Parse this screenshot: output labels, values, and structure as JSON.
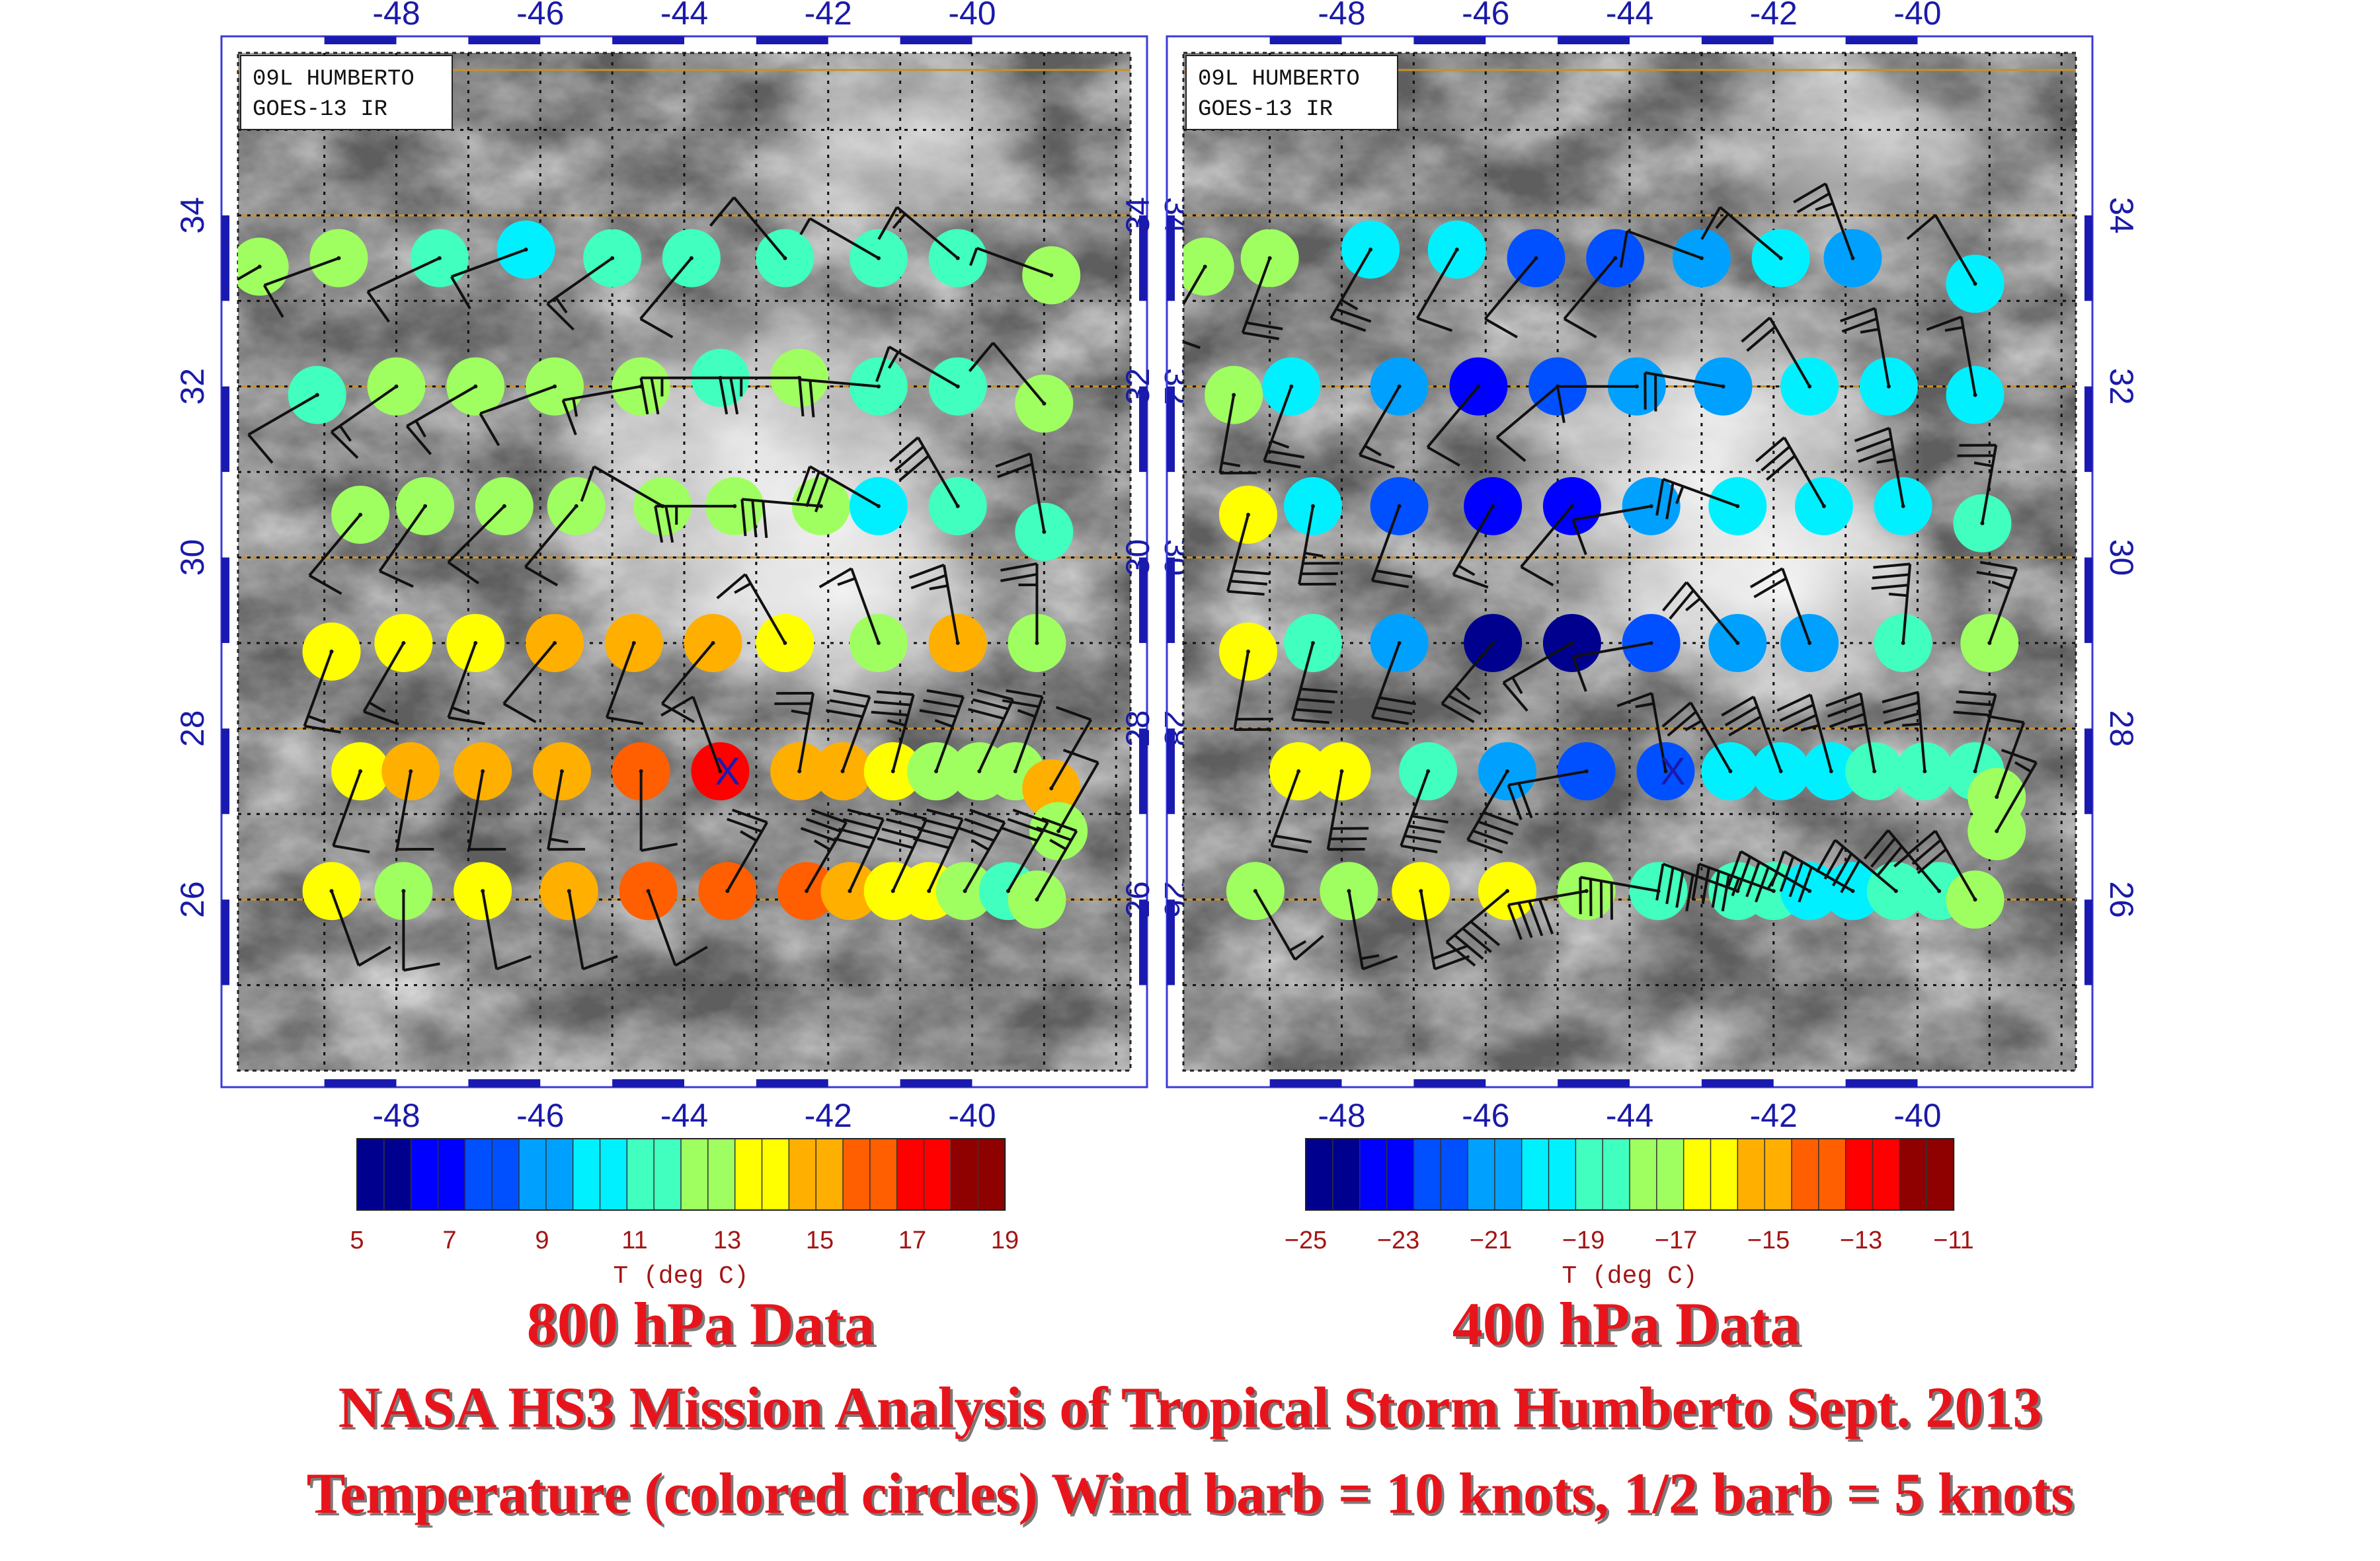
{
  "panels": [
    {
      "id": "left",
      "header": [
        "09L HUMBERTO",
        "GOES-13 IR"
      ],
      "pressure_label": "800 hPa Data",
      "colorbar": {
        "ticks": [
          "5",
          "7",
          "9",
          "11",
          "13",
          "15",
          "17",
          "19"
        ],
        "min": 5,
        "max": 19,
        "label": "T (deg C)"
      }
    },
    {
      "id": "right",
      "header": [
        "09L HUMBERTO",
        "GOES-13 IR"
      ],
      "pressure_label": "400 hPa Data",
      "colorbar": {
        "ticks": [
          "−25",
          "−23",
          "−21",
          "−19",
          "−17",
          "−15",
          "−13",
          "−11"
        ],
        "min": -25,
        "max": -11,
        "label": "T (deg C)"
      }
    }
  ],
  "map": {
    "lon_ticks": [
      "-48",
      "-46",
      "-44",
      "-42",
      "-40"
    ],
    "lat_ticks": [
      "34",
      "32",
      "30",
      "28",
      "26"
    ],
    "lon_range": [
      -50.2,
      -37.8
    ],
    "lat_range": [
      24,
      35.9
    ]
  },
  "captions": {
    "line1": "NASA HS3 Mission Analysis of Tropical Storm Humberto  Sept. 2013",
    "line2": "Temperature (colored circles) Wind barb = 10 knots, 1/2 barb = 5 knots"
  },
  "colormap": [
    "#00008f",
    "#0000ff",
    "#0050ff",
    "#00a0ff",
    "#00f0ff",
    "#40ffbf",
    "#9fff60",
    "#ffff00",
    "#ffaf00",
    "#ff5f00",
    "#ff0000",
    "#8f0000"
  ],
  "chart_data": [
    {
      "type": "scatter",
      "name": "800 hPa",
      "center_marker": {
        "lon": -43.4,
        "lat": 27.5,
        "symbol": "X"
      },
      "points": [
        {
          "lon": -49.9,
          "lat": 33.4,
          "t": 12.6,
          "spd": 15,
          "dir": 240
        },
        {
          "lon": -48.8,
          "lat": 33.5,
          "t": 12.0,
          "spd": 10,
          "dir": 250
        },
        {
          "lon": -47.4,
          "lat": 33.5,
          "t": 11.8,
          "spd": 10,
          "dir": 245
        },
        {
          "lon": -46.2,
          "lat": 33.6,
          "t": 10.6,
          "spd": 10,
          "dir": 250
        },
        {
          "lon": -45.0,
          "lat": 33.5,
          "t": 11.2,
          "spd": 15,
          "dir": 235
        },
        {
          "lon": -43.9,
          "lat": 33.5,
          "t": 11.0,
          "spd": 10,
          "dir": 220
        },
        {
          "lon": -42.6,
          "lat": 33.5,
          "t": 11.1,
          "spd": 10,
          "dir": 320
        },
        {
          "lon": -41.3,
          "lat": 33.5,
          "t": 10.9,
          "spd": 5,
          "dir": 300
        },
        {
          "lon": -40.2,
          "lat": 33.5,
          "t": 11.0,
          "spd": 15,
          "dir": 310
        },
        {
          "lon": -38.9,
          "lat": 33.3,
          "t": 12.6,
          "spd": 5,
          "dir": 290
        },
        {
          "lon": -49.1,
          "lat": 31.9,
          "t": 11.2,
          "spd": 10,
          "dir": 240
        },
        {
          "lon": -48.0,
          "lat": 32.0,
          "t": 12.1,
          "spd": 15,
          "dir": 235
        },
        {
          "lon": -46.9,
          "lat": 32.0,
          "t": 12.0,
          "spd": 15,
          "dir": 240
        },
        {
          "lon": -45.8,
          "lat": 32.0,
          "t": 12.1,
          "spd": 10,
          "dir": 250
        },
        {
          "lon": -44.6,
          "lat": 32.0,
          "t": 12.2,
          "spd": 15,
          "dir": 260
        },
        {
          "lon": -43.5,
          "lat": 32.1,
          "t": 11.8,
          "spd": 25,
          "dir": 270
        },
        {
          "lon": -42.4,
          "lat": 32.1,
          "t": 12.0,
          "spd": 25,
          "dir": 270
        },
        {
          "lon": -41.3,
          "lat": 32.0,
          "t": 11.0,
          "spd": 20,
          "dir": 275
        },
        {
          "lon": -40.2,
          "lat": 32.0,
          "t": 11.1,
          "spd": 15,
          "dir": 300
        },
        {
          "lon": -39.0,
          "lat": 31.8,
          "t": 12.0,
          "spd": 10,
          "dir": 320
        },
        {
          "lon": -48.5,
          "lat": 30.5,
          "t": 12.3,
          "spd": 10,
          "dir": 220
        },
        {
          "lon": -47.6,
          "lat": 30.6,
          "t": 12.2,
          "spd": 10,
          "dir": 215
        },
        {
          "lon": -46.5,
          "lat": 30.6,
          "t": 12.0,
          "spd": 10,
          "dir": 225
        },
        {
          "lon": -45.5,
          "lat": 30.6,
          "t": 12.3,
          "spd": 10,
          "dir": 220
        },
        {
          "lon": -44.3,
          "lat": 30.6,
          "t": 12.5,
          "spd": 10,
          "dir": 300
        },
        {
          "lon": -43.3,
          "lat": 30.6,
          "t": 12.2,
          "spd": 25,
          "dir": 270
        },
        {
          "lon": -42.1,
          "lat": 30.6,
          "t": 12.0,
          "spd": 30,
          "dir": 275
        },
        {
          "lon": -41.3,
          "lat": 30.6,
          "t": 10.8,
          "spd": 30,
          "dir": 300
        },
        {
          "lon": -40.2,
          "lat": 30.6,
          "t": 11.0,
          "spd": 30,
          "dir": 330
        },
        {
          "lon": -39.0,
          "lat": 30.3,
          "t": 11.6,
          "spd": 20,
          "dir": 350
        },
        {
          "lon": -48.9,
          "lat": 28.9,
          "t": 13.6,
          "spd": 15,
          "dir": 200
        },
        {
          "lon": -47.9,
          "lat": 29.0,
          "t": 13.3,
          "spd": 15,
          "dir": 210
        },
        {
          "lon": -46.9,
          "lat": 29.0,
          "t": 13.8,
          "spd": 15,
          "dir": 200
        },
        {
          "lon": -45.8,
          "lat": 29.0,
          "t": 14.7,
          "spd": 10,
          "dir": 220
        },
        {
          "lon": -44.7,
          "lat": 29.0,
          "t": 15.2,
          "spd": 10,
          "dir": 200
        },
        {
          "lon": -43.6,
          "lat": 29.0,
          "t": 15.3,
          "spd": 10,
          "dir": 220
        },
        {
          "lon": -42.6,
          "lat": 29.0,
          "t": 14.2,
          "spd": 15,
          "dir": 330
        },
        {
          "lon": -41.3,
          "lat": 29.0,
          "t": 12.5,
          "spd": 15,
          "dir": 340
        },
        {
          "lon": -40.2,
          "lat": 29.0,
          "t": 14.6,
          "spd": 25,
          "dir": 350
        },
        {
          "lon": -39.1,
          "lat": 29.0,
          "t": 12.4,
          "spd": 25,
          "dir": 360
        },
        {
          "lon": -48.5,
          "lat": 27.5,
          "t": 14.0,
          "spd": 10,
          "dir": 200
        },
        {
          "lon": -47.8,
          "lat": 27.5,
          "t": 14.4,
          "spd": 10,
          "dir": 190
        },
        {
          "lon": -46.8,
          "lat": 27.5,
          "t": 14.6,
          "spd": 10,
          "dir": 190
        },
        {
          "lon": -45.7,
          "lat": 27.5,
          "t": 14.8,
          "spd": 15,
          "dir": 190
        },
        {
          "lon": -44.6,
          "lat": 27.5,
          "t": 16.6,
          "spd": 10,
          "dir": 180
        },
        {
          "lon": -43.5,
          "lat": 27.5,
          "t": 17.6,
          "spd": 10,
          "dir": 340
        },
        {
          "lon": -42.4,
          "lat": 27.5,
          "t": 15.2,
          "spd": 25,
          "dir": 10
        },
        {
          "lon": -41.8,
          "lat": 27.5,
          "t": 14.7,
          "spd": 30,
          "dir": 20
        },
        {
          "lon": -41.1,
          "lat": 27.5,
          "t": 13.6,
          "spd": 35,
          "dir": 15
        },
        {
          "lon": -40.5,
          "lat": 27.5,
          "t": 13.0,
          "spd": 35,
          "dir": 20
        },
        {
          "lon": -39.9,
          "lat": 27.5,
          "t": 12.9,
          "spd": 30,
          "dir": 25
        },
        {
          "lon": -39.4,
          "lat": 27.5,
          "t": 12.8,
          "spd": 25,
          "dir": 20
        },
        {
          "lon": -38.9,
          "lat": 27.3,
          "t": 14.4,
          "spd": 10,
          "dir": 30
        },
        {
          "lon": -38.8,
          "lat": 26.8,
          "t": 12.7,
          "spd": 10,
          "dir": 30
        },
        {
          "lon": -48.9,
          "lat": 26.1,
          "t": 13.4,
          "spd": 10,
          "dir": 160
        },
        {
          "lon": -47.9,
          "lat": 26.1,
          "t": 13.0,
          "spd": 10,
          "dir": 180
        },
        {
          "lon": -46.8,
          "lat": 26.1,
          "t": 13.5,
          "spd": 10,
          "dir": 170
        },
        {
          "lon": -45.6,
          "lat": 26.1,
          "t": 14.5,
          "spd": 10,
          "dir": 170
        },
        {
          "lon": -44.5,
          "lat": 26.1,
          "t": 15.9,
          "spd": 10,
          "dir": 160
        },
        {
          "lon": -43.4,
          "lat": 26.1,
          "t": 16.5,
          "spd": 25,
          "dir": 30
        },
        {
          "lon": -42.3,
          "lat": 26.1,
          "t": 16.5,
          "spd": 35,
          "dir": 30
        },
        {
          "lon": -41.7,
          "lat": 26.1,
          "t": 14.7,
          "spd": 40,
          "dir": 25
        },
        {
          "lon": -41.1,
          "lat": 26.1,
          "t": 14.0,
          "spd": 40,
          "dir": 25
        },
        {
          "lon": -40.6,
          "lat": 26.1,
          "t": 13.2,
          "spd": 40,
          "dir": 25
        },
        {
          "lon": -40.1,
          "lat": 26.1,
          "t": 12.0,
          "spd": 35,
          "dir": 30
        },
        {
          "lon": -39.5,
          "lat": 26.1,
          "t": 11.7,
          "spd": 30,
          "dir": 30
        },
        {
          "lon": -39.1,
          "lat": 26.0,
          "t": 12.3,
          "spd": 25,
          "dir": 30
        }
      ]
    },
    {
      "type": "scatter",
      "name": "400 hPa",
      "center_marker": {
        "lon": -43.4,
        "lat": 27.5,
        "symbol": "X"
      },
      "points": [
        {
          "lon": -49.9,
          "lat": 33.4,
          "t": -17.8,
          "spd": 10,
          "dir": 210
        },
        {
          "lon": -49.0,
          "lat": 33.5,
          "t": -17.9,
          "spd": 20,
          "dir": 200
        },
        {
          "lon": -47.6,
          "lat": 33.6,
          "t": -20.2,
          "spd": 25,
          "dir": 210
        },
        {
          "lon": -46.4,
          "lat": 33.6,
          "t": -20.3,
          "spd": 10,
          "dir": 210
        },
        {
          "lon": -45.3,
          "lat": 33.5,
          "t": -22.3,
          "spd": 10,
          "dir": 220
        },
        {
          "lon": -44.2,
          "lat": 33.5,
          "t": -22.0,
          "spd": 10,
          "dir": 220
        },
        {
          "lon": -43.0,
          "lat": 33.5,
          "t": -20.6,
          "spd": 10,
          "dir": 290
        },
        {
          "lon": -41.9,
          "lat": 33.5,
          "t": -20.3,
          "spd": 15,
          "dir": 310
        },
        {
          "lon": -40.9,
          "lat": 33.5,
          "t": -20.5,
          "spd": 25,
          "dir": 340
        },
        {
          "lon": -39.2,
          "lat": 33.2,
          "t": -20.2,
          "spd": 10,
          "dir": 330
        },
        {
          "lon": -49.5,
          "lat": 31.9,
          "t": -17.6,
          "spd": 15,
          "dir": 190
        },
        {
          "lon": -48.7,
          "lat": 32.0,
          "t": -20.0,
          "spd": 25,
          "dir": 200
        },
        {
          "lon": -47.2,
          "lat": 32.0,
          "t": -21.4,
          "spd": 15,
          "dir": 210
        },
        {
          "lon": -46.1,
          "lat": 32.0,
          "t": -22.8,
          "spd": 10,
          "dir": 220
        },
        {
          "lon": -45.0,
          "lat": 32.0,
          "t": -22.0,
          "spd": 10,
          "dir": 230
        },
        {
          "lon": -43.9,
          "lat": 32.0,
          "t": -21.4,
          "spd": 10,
          "dir": 270
        },
        {
          "lon": -42.7,
          "lat": 32.0,
          "t": -20.6,
          "spd": 20,
          "dir": 280
        },
        {
          "lon": -41.5,
          "lat": 32.0,
          "t": -20.3,
          "spd": 20,
          "dir": 330
        },
        {
          "lon": -40.4,
          "lat": 32.0,
          "t": -20.1,
          "spd": 25,
          "dir": 350
        },
        {
          "lon": -39.2,
          "lat": 31.9,
          "t": -20.1,
          "spd": 15,
          "dir": 350
        },
        {
          "lon": -49.3,
          "lat": 30.5,
          "t": -16.6,
          "spd": 30,
          "dir": 195
        },
        {
          "lon": -48.4,
          "lat": 30.6,
          "t": -20.2,
          "spd": 35,
          "dir": 190
        },
        {
          "lon": -47.2,
          "lat": 30.6,
          "t": -22.0,
          "spd": 20,
          "dir": 200
        },
        {
          "lon": -45.9,
          "lat": 30.6,
          "t": -23.6,
          "spd": 15,
          "dir": 210
        },
        {
          "lon": -44.8,
          "lat": 30.6,
          "t": -23.4,
          "spd": 10,
          "dir": 220
        },
        {
          "lon": -43.7,
          "lat": 30.6,
          "t": -20.7,
          "spd": 10,
          "dir": 260
        },
        {
          "lon": -42.5,
          "lat": 30.6,
          "t": -20.1,
          "spd": 25,
          "dir": 290
        },
        {
          "lon": -41.3,
          "lat": 30.6,
          "t": -19.9,
          "spd": 30,
          "dir": 330
        },
        {
          "lon": -40.2,
          "lat": 30.6,
          "t": -19.5,
          "spd": 35,
          "dir": 350
        },
        {
          "lon": -39.1,
          "lat": 30.4,
          "t": -18.4,
          "spd": 25,
          "dir": 10
        },
        {
          "lon": -49.3,
          "lat": 28.9,
          "t": -16.2,
          "spd": 20,
          "dir": 190
        },
        {
          "lon": -48.4,
          "lat": 29.0,
          "t": -18.3,
          "spd": 40,
          "dir": 195
        },
        {
          "lon": -47.2,
          "lat": 29.0,
          "t": -21.5,
          "spd": 30,
          "dir": 200
        },
        {
          "lon": -45.9,
          "lat": 29.0,
          "t": -24.2,
          "spd": 25,
          "dir": 220
        },
        {
          "lon": -44.8,
          "lat": 29.0,
          "t": -24.0,
          "spd": 15,
          "dir": 240
        },
        {
          "lon": -43.7,
          "lat": 29.0,
          "t": -22.4,
          "spd": 10,
          "dir": 260
        },
        {
          "lon": -42.5,
          "lat": 29.0,
          "t": -20.7,
          "spd": 25,
          "dir": 320
        },
        {
          "lon": -41.5,
          "lat": 29.0,
          "t": -21.0,
          "spd": 20,
          "dir": 340
        },
        {
          "lon": -40.2,
          "lat": 29.0,
          "t": -18.2,
          "spd": 35,
          "dir": 5
        },
        {
          "lon": -39.0,
          "lat": 29.0,
          "t": -17.9,
          "spd": 25,
          "dir": 20
        },
        {
          "lon": -48.6,
          "lat": 27.5,
          "t": -16.0,
          "spd": 20,
          "dir": 200
        },
        {
          "lon": -48.0,
          "lat": 27.5,
          "t": -16.2,
          "spd": 30,
          "dir": 190
        },
        {
          "lon": -46.8,
          "lat": 27.5,
          "t": -19.0,
          "spd": 40,
          "dir": 200
        },
        {
          "lon": -45.7,
          "lat": 27.5,
          "t": -20.4,
          "spd": 40,
          "dir": 210
        },
        {
          "lon": -44.6,
          "lat": 27.5,
          "t": -22.6,
          "spd": 20,
          "dir": 260
        },
        {
          "lon": -43.5,
          "lat": 27.5,
          "t": -22.0,
          "spd": 15,
          "dir": 350
        },
        {
          "lon": -42.6,
          "lat": 27.5,
          "t": -19.8,
          "spd": 25,
          "dir": 330
        },
        {
          "lon": -41.9,
          "lat": 27.5,
          "t": -19.6,
          "spd": 30,
          "dir": 340
        },
        {
          "lon": -41.2,
          "lat": 27.5,
          "t": -19.2,
          "spd": 35,
          "dir": 345
        },
        {
          "lon": -40.6,
          "lat": 27.5,
          "t": -18.8,
          "spd": 35,
          "dir": 350
        },
        {
          "lon": -39.9,
          "lat": 27.5,
          "t": -18.6,
          "spd": 35,
          "dir": 355
        },
        {
          "lon": -39.2,
          "lat": 27.5,
          "t": -18.2,
          "spd": 30,
          "dir": 15
        },
        {
          "lon": -38.9,
          "lat": 27.2,
          "t": -17.8,
          "spd": 10,
          "dir": 20
        },
        {
          "lon": -38.9,
          "lat": 26.8,
          "t": -17.7,
          "spd": 15,
          "dir": 30
        },
        {
          "lon": -49.2,
          "lat": 26.1,
          "t": -17.4,
          "spd": 15,
          "dir": 150
        },
        {
          "lon": -47.9,
          "lat": 26.1,
          "t": -17.0,
          "spd": 15,
          "dir": 170
        },
        {
          "lon": -46.9,
          "lat": 26.1,
          "t": -16.2,
          "spd": 20,
          "dir": 170
        },
        {
          "lon": -45.7,
          "lat": 26.1,
          "t": -16.4,
          "spd": 40,
          "dir": 230
        },
        {
          "lon": -44.6,
          "lat": 26.1,
          "t": -18.0,
          "spd": 40,
          "dir": 260
        },
        {
          "lon": -43.6,
          "lat": 26.1,
          "t": -18.5,
          "spd": 40,
          "dir": 280
        },
        {
          "lon": -42.5,
          "lat": 26.1,
          "t": -18.9,
          "spd": 40,
          "dir": 290
        },
        {
          "lon": -42.0,
          "lat": 26.1,
          "t": -19.0,
          "spd": 45,
          "dir": 290
        },
        {
          "lon": -41.5,
          "lat": 26.1,
          "t": -19.2,
          "spd": 45,
          "dir": 300
        },
        {
          "lon": -40.9,
          "lat": 26.1,
          "t": -19.4,
          "spd": 40,
          "dir": 300
        },
        {
          "lon": -40.3,
          "lat": 26.1,
          "t": -18.6,
          "spd": 40,
          "dir": 310
        },
        {
          "lon": -39.7,
          "lat": 26.1,
          "t": -18.2,
          "spd": 35,
          "dir": 320
        },
        {
          "lon": -39.2,
          "lat": 26.0,
          "t": -18.0,
          "spd": 30,
          "dir": 330
        }
      ]
    }
  ]
}
